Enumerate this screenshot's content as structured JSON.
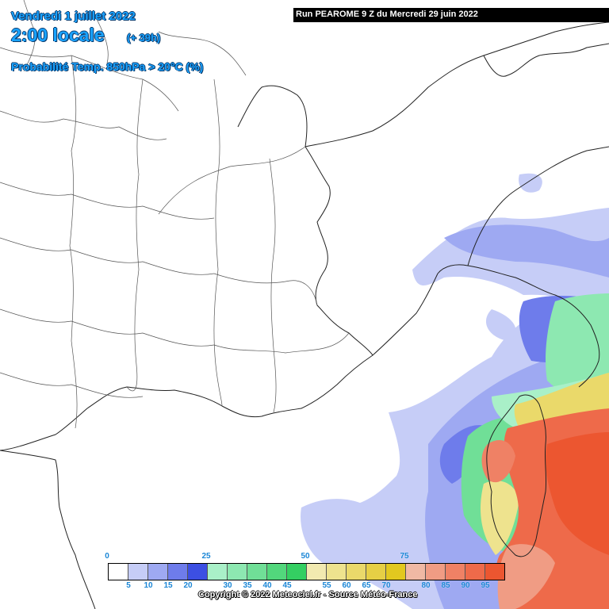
{
  "header": {
    "date": "Vendredi 1 juillet 2022",
    "time": "2:00 locale",
    "lead": "(+ 39h)",
    "parameter": "Probabilité Temp. 850hPa > 20°C (%)"
  },
  "run_info": "Run PEAROME 9 Z du Mercredi 29 juin 2022",
  "legend": {
    "colors": [
      "#ffffff",
      "#c6cdf7",
      "#9ea9f2",
      "#6e7ceb",
      "#3c4fe3",
      "#a9f0c8",
      "#8de8b1",
      "#70df97",
      "#52d77c",
      "#34cf62",
      "#f2eab0",
      "#eee38e",
      "#ead96a",
      "#e6cf45",
      "#e2c81f",
      "#f0b9a4",
      "#f09c84",
      "#ef8165",
      "#ee6a4a",
      "#ec5630"
    ],
    "top_labels": [
      "0",
      "25",
      "50",
      "75"
    ],
    "bottom_labels": [
      "5",
      "10",
      "15",
      "20",
      "30",
      "35",
      "40",
      "45",
      "55",
      "60",
      "65",
      "70",
      "80",
      "85",
      "90",
      "95"
    ]
  },
  "copyright": "Copyright © 2022 Meteociel.fr - Source Météo-France",
  "map": {
    "region": "Sud-Est de la France, Corse",
    "colors": {
      "land": "#ffffff",
      "border": "#222222"
    }
  }
}
